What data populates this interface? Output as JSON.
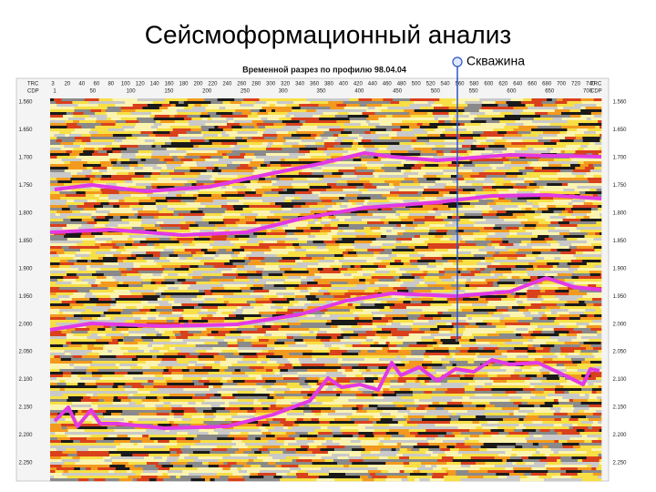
{
  "title": "Сейсмоформационный анализ",
  "well_label": "Скважина",
  "section": {
    "title": "Временной разрез по профилю 98.04.04",
    "trc_label": "TRC",
    "cdp_label": "CDP",
    "trc": [
      "3",
      "20",
      "40",
      "60",
      "80",
      "100",
      "120",
      "140",
      "160",
      "180",
      "200",
      "220",
      "240",
      "260",
      "280",
      "300",
      "320",
      "340",
      "360",
      "380",
      "400",
      "420",
      "440",
      "460",
      "480",
      "500",
      "520",
      "540",
      "560",
      "580",
      "600",
      "620",
      "640",
      "660",
      "680",
      "700",
      "720",
      "740"
    ],
    "cdp": [
      "1",
      "50",
      "100",
      "150",
      "200",
      "250",
      "300",
      "350",
      "400",
      "450",
      "500",
      "550",
      "600",
      "650",
      "700"
    ],
    "times": [
      "1.560",
      "1.650",
      "1.700",
      "1.750",
      "1.800",
      "1.850",
      "1.900",
      "1.950",
      "2.000",
      "2.050",
      "2.100",
      "2.150",
      "2.200",
      "2.250"
    ]
  }
}
